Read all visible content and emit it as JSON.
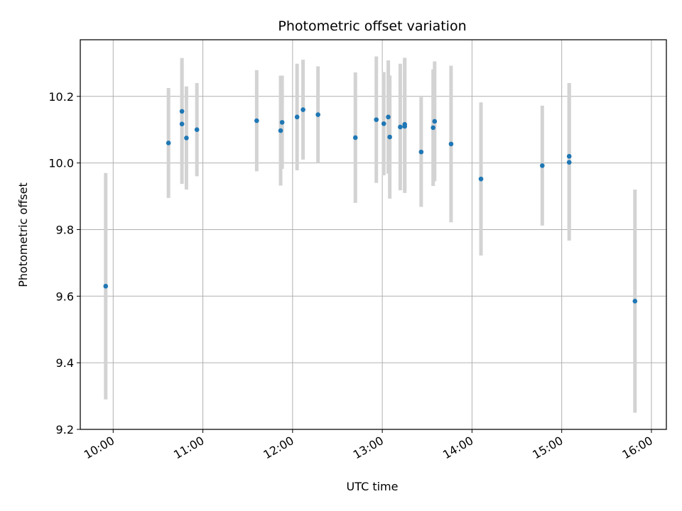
{
  "chart_data": {
    "type": "scatter",
    "title": "Photometric offset variation",
    "xlabel": "UTC time",
    "ylabel": "Photometric offset",
    "grid": true,
    "colors": {
      "points": "#1f77b4",
      "errorbars": "#d3d3d3",
      "grid": "#b0b0b0"
    },
    "xlim": [
      "09:38",
      "16:10"
    ],
    "ylim": [
      9.2,
      10.37
    ],
    "xticks": [
      "10:00",
      "11:00",
      "12:00",
      "13:00",
      "14:00",
      "15:00",
      "16:00"
    ],
    "yticks": [
      9.2,
      9.4,
      9.6,
      9.8,
      10.0,
      10.2
    ],
    "yticklabels": [
      "9.2",
      "9.4",
      "9.6",
      "9.8",
      "10.0",
      "10.2"
    ],
    "series": [
      {
        "points": [
          {
            "x": "09:55",
            "y": 9.63,
            "err": 0.34
          },
          {
            "x": "10:37",
            "y": 10.06,
            "err": 0.165
          },
          {
            "x": "10:46",
            "y": 10.155,
            "err": 0.16
          },
          {
            "x": "10:46",
            "y": 10.117,
            "err": 0.18
          },
          {
            "x": "10:49",
            "y": 10.075,
            "err": 0.155
          },
          {
            "x": "10:56",
            "y": 10.1,
            "err": 0.14
          },
          {
            "x": "11:36",
            "y": 10.127,
            "err": 0.152
          },
          {
            "x": "11:52",
            "y": 10.097,
            "err": 0.165
          },
          {
            "x": "11:53",
            "y": 10.122,
            "err": 0.14
          },
          {
            "x": "12:03",
            "y": 10.138,
            "err": 0.16
          },
          {
            "x": "12:07",
            "y": 10.16,
            "err": 0.15
          },
          {
            "x": "12:17",
            "y": 10.145,
            "err": 0.145
          },
          {
            "x": "12:42",
            "y": 10.076,
            "err": 0.196
          },
          {
            "x": "12:56",
            "y": 10.13,
            "err": 0.19
          },
          {
            "x": "13:01",
            "y": 10.118,
            "err": 0.155
          },
          {
            "x": "13:04",
            "y": 10.138,
            "err": 0.17
          },
          {
            "x": "13:05",
            "y": 10.078,
            "err": 0.185
          },
          {
            "x": "13:12",
            "y": 10.108,
            "err": 0.19
          },
          {
            "x": "13:15",
            "y": 10.11,
            "err": 0.2
          },
          {
            "x": "13:15",
            "y": 10.116,
            "err": 0.2
          },
          {
            "x": "13:26",
            "y": 10.033,
            "err": 0.165
          },
          {
            "x": "13:34",
            "y": 10.106,
            "err": 0.175
          },
          {
            "x": "13:35",
            "y": 10.125,
            "err": 0.18
          },
          {
            "x": "13:46",
            "y": 10.057,
            "err": 0.235
          },
          {
            "x": "14:06",
            "y": 9.952,
            "err": 0.23
          },
          {
            "x": "14:47",
            "y": 9.992,
            "err": 0.18
          },
          {
            "x": "15:05",
            "y": 10.002,
            "err": 0.235
          },
          {
            "x": "15:05",
            "y": 10.02,
            "err": 0.22
          },
          {
            "x": "15:49",
            "y": 9.585,
            "err": 0.335
          }
        ]
      }
    ]
  }
}
